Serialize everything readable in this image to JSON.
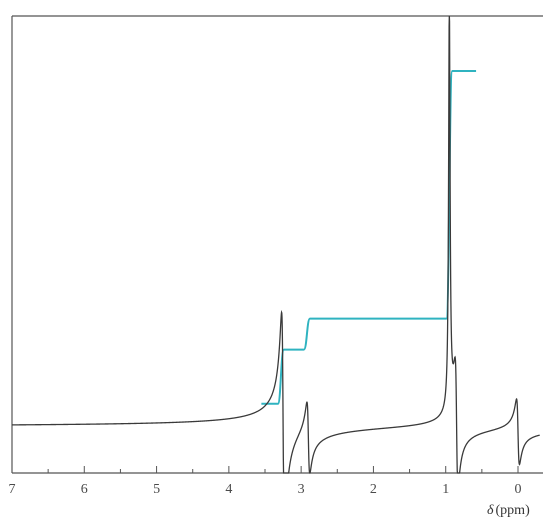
{
  "chart_data": {
    "type": "line",
    "title": "",
    "xlabel": "δ (ppm)",
    "xlabel_symbol": "δ",
    "xlabel_unit": "(ppm)",
    "ylabel": "",
    "xlim": [
      7,
      -0.3
    ],
    "x_reversed": true,
    "grid": false,
    "ticks": [
      7,
      6,
      5,
      4,
      3,
      2,
      1,
      0
    ],
    "tick_labels": [
      "7",
      "6",
      "5",
      "4",
      "3",
      "2",
      "1",
      "0"
    ],
    "spectrum": {
      "baseline": 0,
      "peaks": [
        {
          "shift": 3.25,
          "height": 0.3,
          "shape": "dispersive"
        },
        {
          "shift": 2.9,
          "height": 0.1,
          "shape": "dispersive"
        },
        {
          "shift": 0.95,
          "height": 1.0,
          "shape": "absorption"
        },
        {
          "shift": 0.85,
          "height": 0.17,
          "shape": "dispersive"
        },
        {
          "shift": 0.0,
          "height": 0.09,
          "shape": "dispersive"
        }
      ]
    },
    "integral": {
      "x_start": 3.55,
      "x_end": 0.58,
      "steps": [
        {
          "x": 3.28,
          "from": 0.06,
          "to": 0.2
        },
        {
          "x": 2.92,
          "from": 0.2,
          "to": 0.28
        },
        {
          "x": 0.95,
          "from": 0.28,
          "to": 0.92
        }
      ]
    },
    "colors": {
      "spectrum": "#3a3a3a",
      "integral": "#2fb3c0",
      "frame": "#555555",
      "ticks": "#555555"
    }
  }
}
